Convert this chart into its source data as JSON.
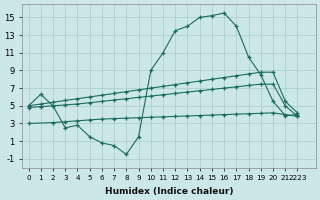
{
  "xlabel": "Humidex (Indice chaleur)",
  "bg_color": "#cce8e6",
  "grid_color": "#a8ceca",
  "line_color": "#1a6b60",
  "xlim": [
    -0.5,
    23.5
  ],
  "ylim": [
    -2.0,
    16.5
  ],
  "ytick_vals": [
    -1,
    1,
    3,
    5,
    7,
    9,
    11,
    13,
    15
  ],
  "xtick_vals": [
    0,
    1,
    2,
    3,
    4,
    5,
    6,
    7,
    8,
    9,
    10,
    11,
    12,
    13,
    14,
    15,
    16,
    17,
    18,
    19,
    20,
    21,
    22
  ],
  "xtick_labels": [
    "0",
    "1",
    "2",
    "3",
    "4",
    "5",
    "6",
    "7",
    "8",
    "9",
    "10",
    "11",
    "12",
    "13",
    "14",
    "15",
    "16",
    "17",
    "18",
    "19",
    "20",
    "21",
    "2223"
  ],
  "series": [
    {
      "x": [
        0,
        1,
        2,
        3,
        4,
        5,
        6,
        7,
        8,
        9,
        10,
        11,
        12,
        13,
        14,
        15,
        16,
        17,
        18,
        19,
        20,
        21,
        22
      ],
      "y": [
        5.0,
        6.3,
        5.0,
        2.5,
        2.8,
        1.5,
        0.8,
        0.5,
        -0.5,
        1.5,
        9.0,
        11.0,
        13.5,
        14.0,
        15.0,
        15.2,
        15.5,
        14.0,
        10.5,
        8.5,
        5.5,
        3.9,
        4.0
      ]
    },
    {
      "x": [
        0,
        1,
        2,
        3,
        4,
        5,
        6,
        7,
        8,
        9,
        10,
        11,
        12,
        13,
        14,
        15,
        16,
        17,
        18,
        19,
        20,
        21,
        22
      ],
      "y": [
        5.0,
        5.2,
        5.4,
        5.6,
        5.8,
        6.0,
        6.2,
        6.4,
        6.6,
        6.8,
        7.0,
        7.2,
        7.4,
        7.6,
        7.8,
        8.0,
        8.2,
        8.4,
        8.6,
        8.8,
        8.8,
        5.5,
        4.2
      ]
    },
    {
      "x": [
        0,
        1,
        2,
        3,
        4,
        5,
        6,
        7,
        8,
        9,
        10,
        11,
        12,
        13,
        14,
        15,
        16,
        17,
        18,
        19,
        20,
        21,
        22
      ],
      "y": [
        4.8,
        4.9,
        5.0,
        5.1,
        5.2,
        5.35,
        5.5,
        5.65,
        5.8,
        5.95,
        6.1,
        6.25,
        6.4,
        6.55,
        6.7,
        6.85,
        7.0,
        7.15,
        7.3,
        7.45,
        7.45,
        5.0,
        3.8
      ]
    },
    {
      "x": [
        0,
        2,
        3,
        4,
        5,
        6,
        7,
        8,
        9,
        10,
        11,
        12,
        13,
        14,
        15,
        16,
        17,
        18,
        19,
        20,
        21,
        22
      ],
      "y": [
        3.0,
        3.1,
        3.2,
        3.3,
        3.4,
        3.5,
        3.55,
        3.6,
        3.65,
        3.7,
        3.75,
        3.8,
        3.85,
        3.9,
        3.95,
        4.0,
        4.05,
        4.1,
        4.15,
        4.2,
        4.0,
        3.8
      ]
    }
  ]
}
